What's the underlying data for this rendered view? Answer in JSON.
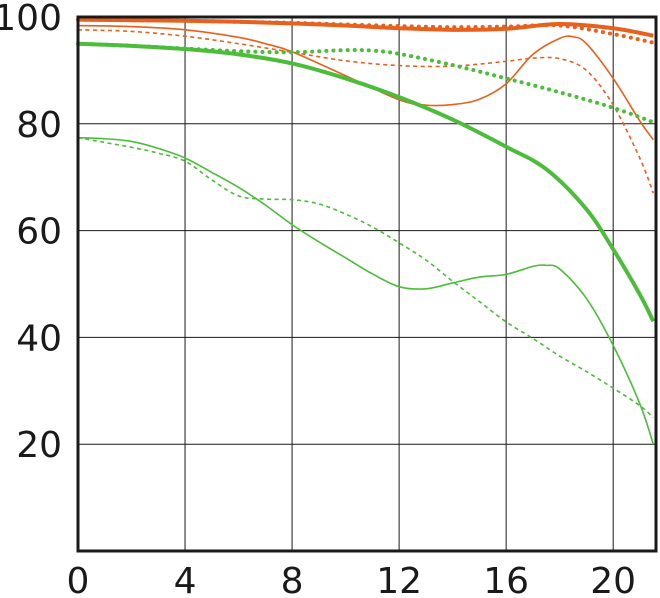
{
  "chart_data": {
    "type": "line",
    "title": "",
    "xlabel": "",
    "ylabel": "",
    "xlim": [
      0,
      21.6
    ],
    "ylim": [
      0,
      100
    ],
    "grid": true,
    "legend": "none",
    "x_ticks": [
      0,
      4,
      8,
      12,
      16,
      20
    ],
    "y_ticks": [
      20,
      40,
      60,
      80,
      100
    ],
    "x_tick_labels": [
      "0",
      "4",
      "8",
      "12",
      "16",
      "20"
    ],
    "y_tick_labels": [
      "20",
      "40",
      "60",
      "80",
      "100"
    ],
    "colors": {
      "orange": "#e8601c",
      "green": "#4bbd3a",
      "grid": "#1a1a1a",
      "axis": "#1a1a1a"
    },
    "series": [
      {
        "color": "orange",
        "style": "solid",
        "weight": "thick",
        "x": [
          0,
          2,
          4,
          6,
          8,
          10,
          12,
          14,
          16,
          18,
          20,
          21.5
        ],
        "y": [
          99.5,
          99.4,
          99.3,
          99.1,
          98.8,
          98.4,
          97.9,
          97.6,
          97.8,
          98.7,
          97.9,
          96.5
        ]
      },
      {
        "color": "orange",
        "style": "dotted",
        "weight": "thick",
        "x": [
          0,
          2,
          4,
          6,
          8,
          10,
          12,
          14,
          16,
          18,
          20,
          21.5
        ],
        "y": [
          99.5,
          99.4,
          99.3,
          99.1,
          98.9,
          98.6,
          98.3,
          98.1,
          98.2,
          98.4,
          96.8,
          95.2
        ]
      },
      {
        "color": "orange",
        "style": "solid",
        "weight": "thin",
        "x": [
          0,
          2,
          4,
          6,
          7,
          8,
          10,
          12,
          13,
          14,
          15,
          16,
          17,
          18,
          18.5,
          19,
          20,
          21,
          21.5
        ],
        "y": [
          98.4,
          98.2,
          97.6,
          96.2,
          95,
          93.5,
          89,
          84.5,
          83.5,
          83.6,
          84.6,
          87.5,
          93,
          96,
          96.3,
          95,
          88.5,
          80.5,
          77
        ]
      },
      {
        "color": "orange",
        "style": "dashed",
        "weight": "thin",
        "x": [
          0,
          2,
          4,
          6,
          8,
          10,
          12,
          14,
          16,
          17,
          18,
          19,
          20,
          21,
          21.5
        ],
        "y": [
          97.6,
          97.3,
          96.4,
          95,
          93.4,
          91.8,
          90.9,
          90.8,
          91.7,
          92.3,
          92.2,
          90,
          83.5,
          73.5,
          67
        ]
      },
      {
        "color": "green",
        "style": "solid",
        "weight": "thick",
        "x": [
          0,
          2,
          4,
          6,
          8,
          10,
          12,
          14,
          16,
          17.5,
          19,
          20,
          21,
          21.5
        ],
        "y": [
          95,
          94.6,
          94,
          93,
          91.3,
          88.5,
          85,
          80.8,
          75.7,
          71.5,
          64,
          56.5,
          48,
          43
        ]
      },
      {
        "color": "green",
        "style": "dotted",
        "weight": "thick",
        "x": [
          0,
          2,
          4,
          6,
          8,
          10,
          11,
          12,
          14,
          16,
          18,
          20,
          21.5
        ],
        "y": [
          95,
          94.6,
          94.1,
          93.6,
          93.4,
          93.8,
          93.7,
          93.1,
          91,
          88.5,
          85.9,
          83,
          80.3
        ]
      },
      {
        "color": "green",
        "style": "solid",
        "weight": "thin",
        "x": [
          0,
          1,
          2,
          3,
          4,
          5,
          6,
          7,
          8,
          9,
          10,
          11,
          12,
          13,
          14,
          15,
          16,
          17,
          17.5,
          18,
          19,
          20,
          21,
          21.5
        ],
        "y": [
          77.4,
          77.2,
          76.7,
          75.4,
          73.6,
          70.9,
          68.1,
          64.8,
          61.1,
          57.9,
          54.9,
          51.9,
          49.5,
          49.1,
          50.2,
          51.3,
          51.8,
          53.3,
          53.5,
          52.8,
          47.3,
          38.5,
          27.5,
          20
        ]
      },
      {
        "color": "green",
        "style": "dashed",
        "weight": "thin",
        "x": [
          0,
          1,
          2,
          3,
          4,
          5,
          6,
          7,
          8,
          9,
          10,
          11,
          12,
          13,
          14,
          15,
          16,
          17,
          18,
          19,
          20,
          21,
          21.5
        ],
        "y": [
          77.4,
          76.5,
          75.6,
          74.5,
          73,
          69.5,
          66.5,
          65.9,
          65.8,
          65,
          63.1,
          60.7,
          57.7,
          54.5,
          50.5,
          46.7,
          42.9,
          39.8,
          36.5,
          33.6,
          30.5,
          27.2,
          25
        ]
      }
    ]
  }
}
